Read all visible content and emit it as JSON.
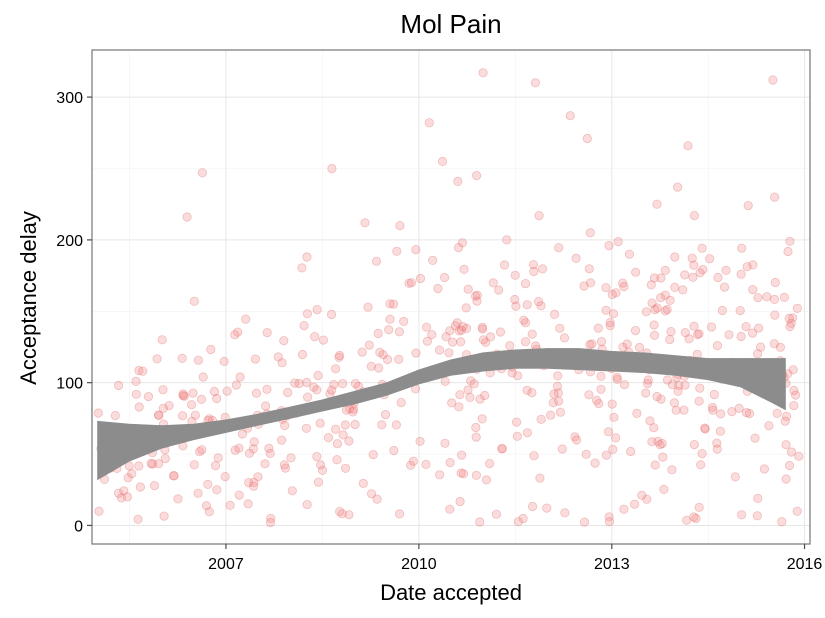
{
  "chart_data": {
    "type": "scatter",
    "title": "Mol Pain",
    "xlabel": "Date accepted",
    "ylabel": "Acceptance delay",
    "xlim": [
      "2004-12-01",
      "2016-02-01"
    ],
    "ylim": [
      -13,
      333
    ],
    "x_ticks": [
      "2007-01-01",
      "2010-01-01",
      "2013-01-01",
      "2016-01-01"
    ],
    "x_tick_labels": [
      "2007",
      "2010",
      "2013",
      "2016"
    ],
    "y_ticks": [
      0,
      100,
      200,
      300
    ],
    "y_tick_labels": [
      "0",
      "100",
      "200",
      "300"
    ],
    "grid": true,
    "point_color": "#f08080",
    "point_stroke": "#e06060",
    "band_color": "#8c8c8c",
    "outlier_points": [
      {
        "x": "2005-01-10",
        "y": 10
      },
      {
        "x": "2005-03-12",
        "y": 52
      },
      {
        "x": "2005-05-01",
        "y": 98
      },
      {
        "x": "2005-06-20",
        "y": 20
      },
      {
        "x": "2005-09-15",
        "y": 108
      },
      {
        "x": "2006-01-10",
        "y": 82
      },
      {
        "x": "2006-05-25",
        "y": 216
      },
      {
        "x": "2006-07-05",
        "y": 157
      },
      {
        "x": "2006-08-20",
        "y": 247
      },
      {
        "x": "2007-05-10",
        "y": 30
      },
      {
        "x": "2007-09-12",
        "y": 5
      },
      {
        "x": "2007-12-01",
        "y": 70
      },
      {
        "x": "2008-03-20",
        "y": 140
      },
      {
        "x": "2008-04-05",
        "y": 188
      },
      {
        "x": "2008-08-25",
        "y": 250
      },
      {
        "x": "2008-11-10",
        "y": 40
      },
      {
        "x": "2009-03-01",
        "y": 212
      },
      {
        "x": "2009-05-05",
        "y": 185
      },
      {
        "x": "2009-08-10",
        "y": 155
      },
      {
        "x": "2009-09-15",
        "y": 210
      },
      {
        "x": "2009-11-20",
        "y": 170
      },
      {
        "x": "2009-12-01",
        "y": 45
      },
      {
        "x": "2010-03-01",
        "y": 282
      },
      {
        "x": "2010-05-15",
        "y": 255
      },
      {
        "x": "2010-08-10",
        "y": 241
      },
      {
        "x": "2010-11-25",
        "y": 245
      },
      {
        "x": "2011-01-01",
        "y": 317
      },
      {
        "x": "2011-05-15",
        "y": 200
      },
      {
        "x": "2011-10-25",
        "y": 310
      },
      {
        "x": "2011-11-15",
        "y": 217
      },
      {
        "x": "2012-05-10",
        "y": 287
      },
      {
        "x": "2012-08-15",
        "y": 271
      },
      {
        "x": "2012-09-01",
        "y": 205
      },
      {
        "x": "2013-09-15",
        "y": 225
      },
      {
        "x": "2014-01-10",
        "y": 237
      },
      {
        "x": "2014-03-10",
        "y": 266
      },
      {
        "x": "2014-04-15",
        "y": 217
      },
      {
        "x": "2015-02-15",
        "y": 224
      },
      {
        "x": "2015-07-05",
        "y": 312
      },
      {
        "x": "2015-07-15",
        "y": 230
      },
      {
        "x": "2015-10-10",
        "y": 199
      },
      {
        "x": "2015-11-20",
        "y": 10
      }
    ],
    "trend_band": [
      {
        "x": "2005-01-01",
        "lower": 32,
        "upper": 73
      },
      {
        "x": "2005-07-01",
        "lower": 45,
        "upper": 71
      },
      {
        "x": "2006-01-01",
        "lower": 54,
        "upper": 70
      },
      {
        "x": "2006-07-01",
        "lower": 60,
        "upper": 71
      },
      {
        "x": "2007-01-01",
        "lower": 65,
        "upper": 74
      },
      {
        "x": "2007-07-01",
        "lower": 70,
        "upper": 78
      },
      {
        "x": "2008-01-01",
        "lower": 75,
        "upper": 83
      },
      {
        "x": "2008-07-01",
        "lower": 80,
        "upper": 88
      },
      {
        "x": "2009-01-01",
        "lower": 85,
        "upper": 94
      },
      {
        "x": "2009-07-01",
        "lower": 91,
        "upper": 100
      },
      {
        "x": "2010-01-01",
        "lower": 99,
        "upper": 109
      },
      {
        "x": "2010-07-01",
        "lower": 105,
        "upper": 116
      },
      {
        "x": "2011-01-01",
        "lower": 108,
        "upper": 121
      },
      {
        "x": "2011-07-01",
        "lower": 110,
        "upper": 123
      },
      {
        "x": "2012-01-01",
        "lower": 110,
        "upper": 124
      },
      {
        "x": "2012-07-01",
        "lower": 109,
        "upper": 124
      },
      {
        "x": "2013-01-01",
        "lower": 108,
        "upper": 122
      },
      {
        "x": "2013-07-01",
        "lower": 107,
        "upper": 121
      },
      {
        "x": "2014-01-01",
        "lower": 105,
        "upper": 119
      },
      {
        "x": "2014-07-01",
        "lower": 102,
        "upper": 117
      },
      {
        "x": "2015-01-01",
        "lower": 97,
        "upper": 117
      },
      {
        "x": "2015-07-01",
        "lower": 86,
        "upper": 117
      },
      {
        "x": "2015-09-15",
        "lower": 81,
        "upper": 117
      }
    ]
  }
}
